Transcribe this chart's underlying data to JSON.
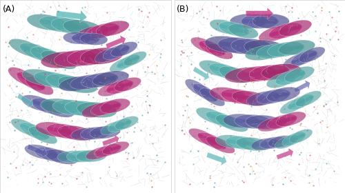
{
  "label_A": "(A)",
  "label_B": "(B)",
  "label_fontsize": 9,
  "background_color": "#ffffff",
  "border_color": "#cccccc",
  "fig_width": 5.0,
  "fig_height": 2.8,
  "dpi": 100,
  "cyan_color": "#5ab5b5",
  "magenta_color": "#c03080",
  "purple_color": "#6060a8",
  "white_color": "#f8f8f8",
  "stick_colors": [
    "#c0a0a0",
    "#a0c0c0",
    "#b0b0c8",
    "#d0b8b8",
    "#b8d0d0",
    "#c8c0c0"
  ],
  "atom_colors": [
    "#cc4444",
    "#4488aa",
    "#888888",
    "#cc8844",
    "#44aa88"
  ]
}
